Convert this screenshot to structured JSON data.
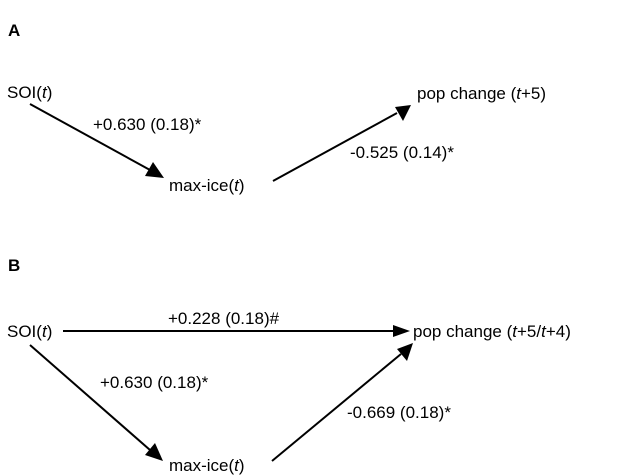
{
  "panels": [
    {
      "id": "A",
      "label": "A",
      "nodes": {
        "soi": {
          "text": "SOI(",
          "var": "t",
          "close": ")"
        },
        "maxice": {
          "text": "max-ice(",
          "var": "t",
          "close": ")"
        },
        "pop": {
          "text": "pop change (",
          "var": "t",
          "rest": "+5)"
        }
      },
      "edges": {
        "soi_maxice": "+0.630 (0.18)*",
        "maxice_pop": "-0.525 (0.14)*"
      }
    },
    {
      "id": "B",
      "label": "B",
      "nodes": {
        "soi": {
          "text": "SOI(",
          "var": "t",
          "close": ")"
        },
        "maxice": {
          "text": "max-ice(",
          "var": "t",
          "close": ")"
        },
        "pop": {
          "text": "pop change (",
          "var": "t",
          "mid": "+5/",
          "var2": "t",
          "rest": "+4)"
        }
      },
      "edges": {
        "soi_pop": "+0.228 (0.18)#",
        "soi_maxice": "+0.630 (0.18)*",
        "maxice_pop": "-0.669 (0.18)*"
      }
    }
  ]
}
